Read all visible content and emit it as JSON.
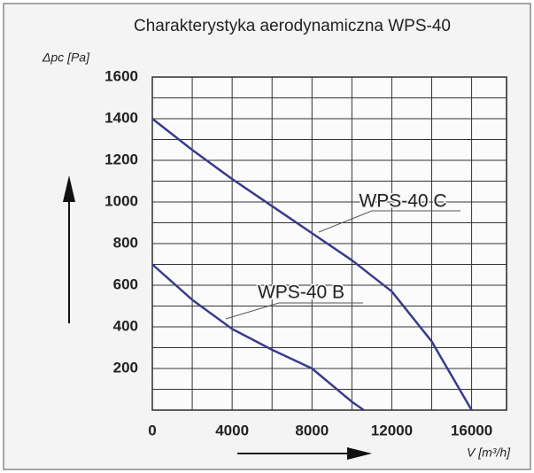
{
  "chart_data": {
    "type": "line",
    "title": "Charakterystyka aerodynamiczna  WPS-40",
    "ylabel": "Δpc [Pa]",
    "xlabel": "V [m³/h]",
    "xlim": [
      0,
      17750
    ],
    "ylim": [
      0,
      1600
    ],
    "xticks": [
      0,
      4000,
      8000,
      12000,
      16000
    ],
    "yticks": [
      200,
      400,
      600,
      800,
      1000,
      1200,
      1400,
      1600
    ],
    "xgrid": [
      0,
      2000,
      4000,
      6000,
      8000,
      10000,
      12000,
      14000,
      16000
    ],
    "ygrid": [
      0,
      100,
      200,
      300,
      400,
      500,
      600,
      700,
      800,
      900,
      1000,
      1100,
      1200,
      1300,
      1400,
      1500,
      1600
    ],
    "grid": true,
    "series": [
      {
        "name": "WPS-40 C",
        "color": "#3a3a8c",
        "x": [
          0,
          2000,
          4000,
          6000,
          8000,
          10000,
          12000,
          14000,
          16000
        ],
        "values": [
          1400,
          1250,
          1110,
          980,
          850,
          720,
          570,
          330,
          0
        ]
      },
      {
        "name": "WPS-40 B",
        "color": "#3a3a8c",
        "x": [
          0,
          2000,
          4000,
          6000,
          8000,
          10000,
          10600
        ],
        "values": [
          700,
          530,
          390,
          290,
          200,
          40,
          0
        ]
      }
    ]
  }
}
